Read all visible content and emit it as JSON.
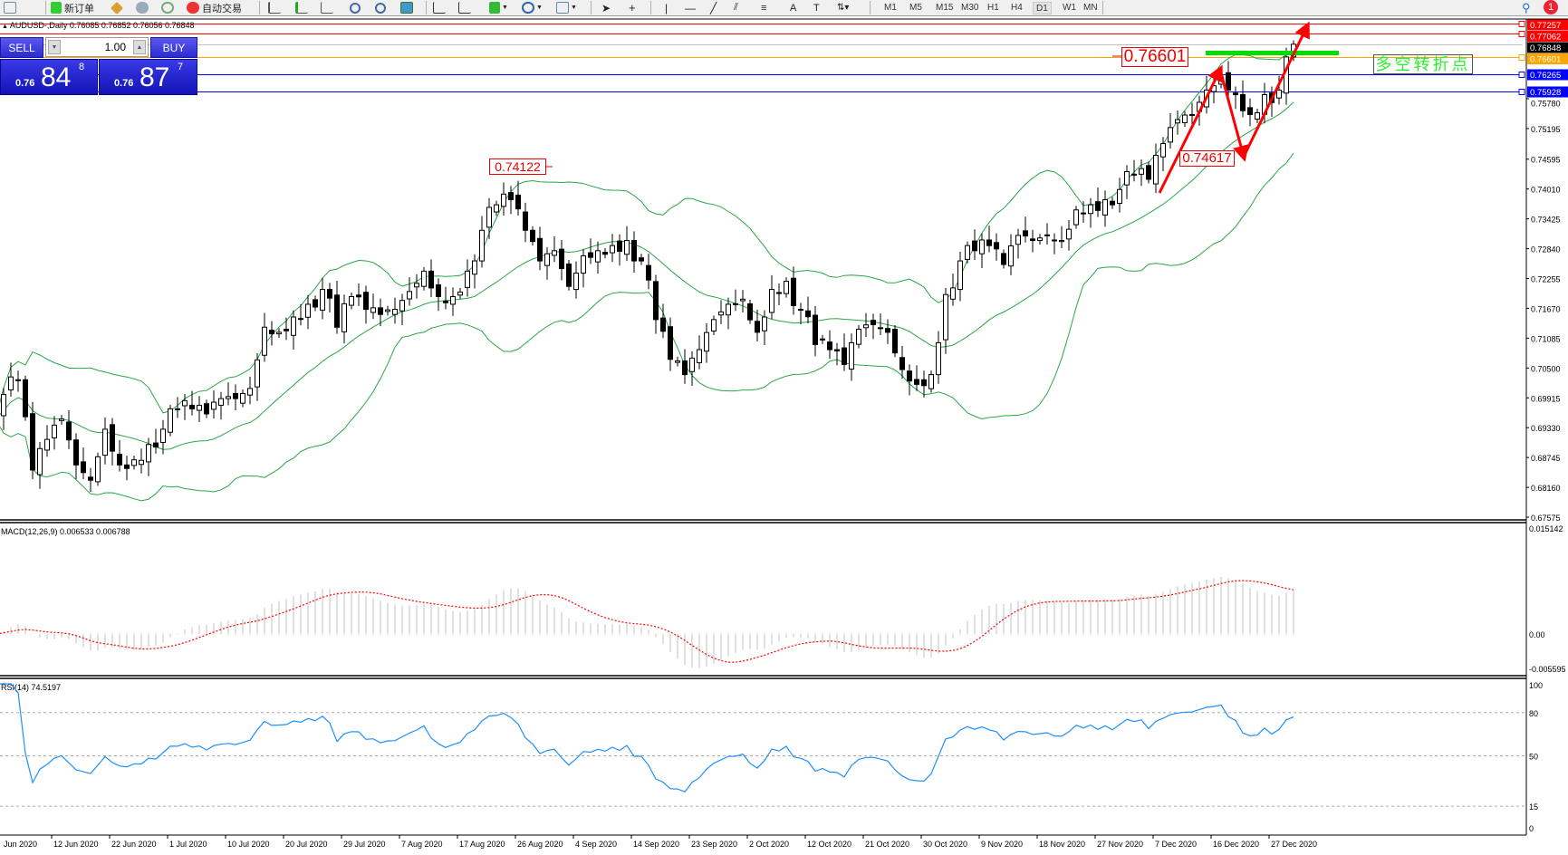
{
  "toolbar": {
    "new_order": "新订单",
    "auto_trading": "自动交易",
    "timeframes": [
      "M1",
      "M5",
      "M15",
      "M30",
      "H1",
      "H4",
      "D1",
      "W1",
      "MN"
    ],
    "active_timeframe": "D1",
    "notification_count": "1",
    "text_tool": "A",
    "text_label_tool": "T"
  },
  "chart": {
    "header": "AUDUSD-,Daily  0.76085 0.76852 0.76056 0.76848"
  },
  "trade_panel": {
    "sell_label": "SELL",
    "buy_label": "BUY",
    "lot": "1.00",
    "sell": {
      "prefix": "0.76",
      "big": "84",
      "sup": "8"
    },
    "buy": {
      "prefix": "0.76",
      "big": "87",
      "sup": "7"
    }
  },
  "price_axis": {
    "ticks": [
      "0.75780",
      "0.75195",
      "0.74595",
      "0.74010",
      "0.73425",
      "0.72840",
      "0.72255",
      "0.71670",
      "0.71085",
      "0.70500",
      "0.69915",
      "0.69330",
      "0.68745",
      "0.68160",
      "0.67575"
    ],
    "levels": [
      {
        "value": "0.77257",
        "color": "#ff0000",
        "text_color": "#ffffff"
      },
      {
        "value": "0.77062",
        "color": "#ff0000",
        "text_color": "#ffffff"
      },
      {
        "value": "0.76848",
        "color": "#000000",
        "text_color": "#ffffff",
        "line": "#c0c0c0"
      },
      {
        "value": "0.76601",
        "color": "#ffa500",
        "text_color": "#ffffff"
      },
      {
        "value": "0.76265",
        "color": "#0000ff",
        "text_color": "#ffffff"
      },
      {
        "value": "0.75928",
        "color": "#0000ff",
        "text_color": "#ffffff"
      }
    ]
  },
  "annotations": {
    "high_label": "0.74122",
    "pivot_label": "0.76601",
    "low_label": "0.74617",
    "turning_point": "多空转折点",
    "arrow_color": "#ff0000",
    "pivot_bar_color": "#00dd00"
  },
  "macd": {
    "label": "MACD(12,26,9) 0.006533 0.006788",
    "axis": [
      "0.015142",
      "0.00",
      "-0.005595"
    ]
  },
  "rsi": {
    "label": "RSI(14) 74.5197",
    "axis": [
      "100",
      "80",
      "50",
      "15",
      "0"
    ],
    "color": "#1e90ff"
  },
  "dates": [
    "Jun 2020",
    "12 Jun 2020",
    "22 Jun 2020",
    "1 Jul 2020",
    "10 Jul 2020",
    "20 Jul 2020",
    "29 Jul 2020",
    "7 Aug 2020",
    "17 Aug 2020",
    "26 Aug 2020",
    "4 Sep 2020",
    "14 Sep 2020",
    "23 Sep 2020",
    "2 Oct 2020",
    "12 Oct 2020",
    "21 Oct 2020",
    "30 Oct 2020",
    "9 Nov 2020",
    "18 Nov 2020",
    "27 Nov 2020",
    "7 Dec 2020",
    "16 Dec 2020",
    "27 Dec 2020"
  ],
  "chart_data": {
    "type": "candlestick",
    "symbol": "AUDUSD-",
    "timeframe": "Daily",
    "ylim": [
      0.67575,
      0.7733
    ],
    "indicators": [
      "Bollinger Bands(20,2)",
      "MACD(12,26,9)",
      "RSI(14)"
    ],
    "closes_approx": [
      0.6949,
      0.6998,
      0.7027,
      0.685,
      0.691,
      0.695,
      0.686,
      0.683,
      0.693,
      0.686,
      0.687,
      0.69,
      0.693,
      0.697,
      0.697,
      0.696,
      0.699,
      0.699,
      0.701,
      0.713,
      0.712,
      0.715,
      0.7175,
      0.7204,
      0.713,
      0.719,
      0.7165,
      0.7155,
      0.7165,
      0.72,
      0.724,
      0.719,
      0.719,
      0.724,
      0.732,
      0.737,
      0.738,
      0.732,
      0.726,
      0.728,
      0.721,
      0.727,
      0.728,
      0.729,
      0.73,
      0.726,
      0.7145,
      0.7067,
      0.7037,
      0.7086,
      0.7145,
      0.7175,
      0.7185,
      0.712,
      0.7204,
      0.722,
      0.7165,
      0.7096,
      0.7086,
      0.7057,
      0.7126,
      0.7135,
      0.712,
      0.7047,
      0.7018,
      0.7037,
      0.7194,
      0.726,
      0.728,
      0.729,
      0.7253,
      0.731,
      0.73,
      0.731,
      0.73,
      0.736,
      0.737,
      0.738,
      0.74,
      0.743,
      0.742,
      0.749,
      0.7537,
      0.7547,
      0.7595,
      0.762,
      0.7586,
      0.7547,
      0.7586,
      0.7595,
      0.76848
    ]
  }
}
